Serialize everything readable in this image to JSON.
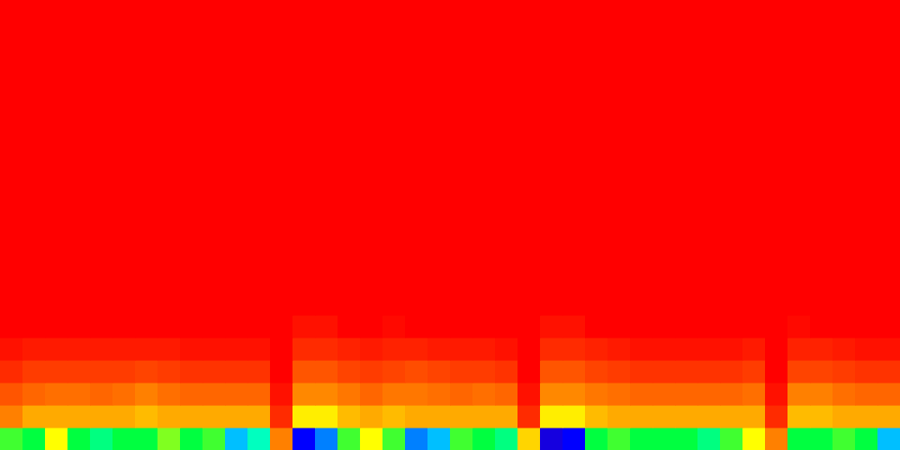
{
  "chart_data": {
    "type": "heatmap",
    "xlim": [
      0,
      40
    ],
    "ylim": [
      0,
      20
    ],
    "zlim": [
      0,
      1
    ],
    "tick_labels": false,
    "cells": [
      [
        0.55,
        0.5,
        0.7,
        0.5,
        0.45,
        0.5,
        0.5,
        0.6,
        0.5,
        0.55,
        0.3,
        0.4,
        0.85,
        0.15,
        0.25,
        0.55,
        0.7,
        0.55,
        0.25,
        0.3,
        0.55,
        0.5,
        0.45,
        0.75,
        0.1,
        0.15,
        0.5,
        0.55,
        0.5,
        0.5,
        0.5,
        0.45,
        0.55,
        0.7,
        0.85,
        0.5,
        0.5,
        0.55,
        0.5,
        0.3
      ],
      [
        0.85,
        0.8,
        0.8,
        0.8,
        0.8,
        0.8,
        0.78,
        0.8,
        0.8,
        0.8,
        0.8,
        0.8,
        0.95,
        0.72,
        0.72,
        0.78,
        0.8,
        0.78,
        0.8,
        0.8,
        0.8,
        0.8,
        0.8,
        0.95,
        0.72,
        0.72,
        0.78,
        0.8,
        0.8,
        0.8,
        0.8,
        0.8,
        0.8,
        0.8,
        0.95,
        0.78,
        0.78,
        0.8,
        0.8,
        0.8
      ],
      [
        0.9,
        0.88,
        0.87,
        0.87,
        0.88,
        0.87,
        0.85,
        0.87,
        0.88,
        0.88,
        0.88,
        0.88,
        0.98,
        0.84,
        0.84,
        0.86,
        0.88,
        0.86,
        0.86,
        0.87,
        0.88,
        0.87,
        0.88,
        0.98,
        0.84,
        0.84,
        0.86,
        0.87,
        0.88,
        0.88,
        0.88,
        0.88,
        0.88,
        0.87,
        0.98,
        0.85,
        0.85,
        0.87,
        0.88,
        0.88
      ],
      [
        0.95,
        0.93,
        0.93,
        0.93,
        0.93,
        0.93,
        0.92,
        0.93,
        0.94,
        0.94,
        0.94,
        0.94,
        1,
        0.9,
        0.9,
        0.92,
        0.93,
        0.92,
        0.91,
        0.92,
        0.93,
        0.93,
        0.94,
        1,
        0.9,
        0.9,
        0.92,
        0.93,
        0.94,
        0.94,
        0.94,
        0.94,
        0.94,
        0.93,
        1,
        0.92,
        0.92,
        0.93,
        0.94,
        0.94
      ],
      [
        0.98,
        0.97,
        0.97,
        0.97,
        0.97,
        0.97,
        0.97,
        0.97,
        0.98,
        0.98,
        0.98,
        0.98,
        1,
        0.95,
        0.95,
        0.96,
        0.97,
        0.96,
        0.96,
        0.97,
        0.97,
        0.97,
        0.98,
        1,
        0.95,
        0.95,
        0.96,
        0.97,
        0.98,
        0.98,
        0.98,
        0.98,
        0.98,
        0.97,
        1,
        0.96,
        0.96,
        0.97,
        0.98,
        0.98
      ],
      [
        1,
        1,
        1,
        1,
        1,
        1,
        1,
        1,
        1,
        1,
        1,
        1,
        1,
        0.98,
        0.98,
        1,
        1,
        0.99,
        1,
        1,
        1,
        1,
        1,
        1,
        0.98,
        0.98,
        1,
        1,
        1,
        1,
        1,
        1,
        1,
        1,
        1,
        0.99,
        1,
        1,
        1,
        1
      ],
      [
        1,
        1,
        1,
        1,
        1,
        1,
        1,
        1,
        1,
        1,
        1,
        1,
        1,
        1,
        1,
        1,
        1,
        1,
        1,
        1,
        1,
        1,
        1,
        1,
        1,
        1,
        1,
        1,
        1,
        1,
        1,
        1,
        1,
        1,
        1,
        1,
        1,
        1,
        1,
        1
      ],
      [
        1,
        1,
        1,
        1,
        1,
        1,
        1,
        1,
        1,
        1,
        1,
        1,
        1,
        1,
        1,
        1,
        1,
        1,
        1,
        1,
        1,
        1,
        1,
        1,
        1,
        1,
        1,
        1,
        1,
        1,
        1,
        1,
        1,
        1,
        1,
        1,
        1,
        1,
        1,
        1
      ],
      [
        1,
        1,
        1,
        1,
        1,
        1,
        1,
        1,
        1,
        1,
        1,
        1,
        1,
        1,
        1,
        1,
        1,
        1,
        1,
        1,
        1,
        1,
        1,
        1,
        1,
        1,
        1,
        1,
        1,
        1,
        1,
        1,
        1,
        1,
        1,
        1,
        1,
        1,
        1,
        1
      ],
      [
        1,
        1,
        1,
        1,
        1,
        1,
        1,
        1,
        1,
        1,
        1,
        1,
        1,
        1,
        1,
        1,
        1,
        1,
        1,
        1,
        1,
        1,
        1,
        1,
        1,
        1,
        1,
        1,
        1,
        1,
        1,
        1,
        1,
        1,
        1,
        1,
        1,
        1,
        1,
        1
      ],
      [
        1,
        1,
        1,
        1,
        1,
        1,
        1,
        1,
        1,
        1,
        1,
        1,
        1,
        1,
        1,
        1,
        1,
        1,
        1,
        1,
        1,
        1,
        1,
        1,
        1,
        1,
        1,
        1,
        1,
        1,
        1,
        1,
        1,
        1,
        1,
        1,
        1,
        1,
        1,
        1
      ],
      [
        1,
        1,
        1,
        1,
        1,
        1,
        1,
        1,
        1,
        1,
        1,
        1,
        1,
        1,
        1,
        1,
        1,
        1,
        1,
        1,
        1,
        1,
        1,
        1,
        1,
        1,
        1,
        1,
        1,
        1,
        1,
        1,
        1,
        1,
        1,
        1,
        1,
        1,
        1,
        1
      ],
      [
        1,
        1,
        1,
        1,
        1,
        1,
        1,
        1,
        1,
        1,
        1,
        1,
        1,
        1,
        1,
        1,
        1,
        1,
        1,
        1,
        1,
        1,
        1,
        1,
        1,
        1,
        1,
        1,
        1,
        1,
        1,
        1,
        1,
        1,
        1,
        1,
        1,
        1,
        1,
        1
      ],
      [
        1,
        1,
        1,
        1,
        1,
        1,
        1,
        1,
        1,
        1,
        1,
        1,
        1,
        1,
        1,
        1,
        1,
        1,
        1,
        1,
        1,
        1,
        1,
        1,
        1,
        1,
        1,
        1,
        1,
        1,
        1,
        1,
        1,
        1,
        1,
        1,
        1,
        1,
        1,
        1
      ],
      [
        1,
        1,
        1,
        1,
        1,
        1,
        1,
        1,
        1,
        1,
        1,
        1,
        1,
        1,
        1,
        1,
        1,
        1,
        1,
        1,
        1,
        1,
        1,
        1,
        1,
        1,
        1,
        1,
        1,
        1,
        1,
        1,
        1,
        1,
        1,
        1,
        1,
        1,
        1,
        1
      ],
      [
        1,
        1,
        1,
        1,
        1,
        1,
        1,
        1,
        1,
        1,
        1,
        1,
        1,
        1,
        1,
        1,
        1,
        1,
        1,
        1,
        1,
        1,
        1,
        1,
        1,
        1,
        1,
        1,
        1,
        1,
        1,
        1,
        1,
        1,
        1,
        1,
        1,
        1,
        1,
        1
      ],
      [
        1,
        1,
        1,
        1,
        1,
        1,
        1,
        1,
        1,
        1,
        1,
        1,
        1,
        1,
        1,
        1,
        1,
        1,
        1,
        1,
        1,
        1,
        1,
        1,
        1,
        1,
        1,
        1,
        1,
        1,
        1,
        1,
        1,
        1,
        1,
        1,
        1,
        1,
        1,
        1
      ],
      [
        1,
        1,
        1,
        1,
        1,
        1,
        1,
        1,
        1,
        1,
        1,
        1,
        1,
        1,
        1,
        1,
        1,
        1,
        1,
        1,
        1,
        1,
        1,
        1,
        1,
        1,
        1,
        1,
        1,
        1,
        1,
        1,
        1,
        1,
        1,
        1,
        1,
        1,
        1,
        1
      ],
      [
        1,
        1,
        1,
        1,
        1,
        1,
        1,
        1,
        1,
        1,
        1,
        1,
        1,
        1,
        1,
        1,
        1,
        1,
        1,
        1,
        1,
        1,
        1,
        1,
        1,
        1,
        1,
        1,
        1,
        1,
        1,
        1,
        1,
        1,
        1,
        1,
        1,
        1,
        1,
        1
      ],
      [
        1,
        1,
        1,
        1,
        1,
        1,
        1,
        1,
        1,
        1,
        1,
        1,
        1,
        1,
        1,
        1,
        1,
        1,
        1,
        1,
        1,
        1,
        1,
        1,
        1,
        1,
        1,
        1,
        1,
        1,
        1,
        1,
        1,
        1,
        1,
        1,
        1,
        1,
        1,
        1
      ]
    ]
  }
}
